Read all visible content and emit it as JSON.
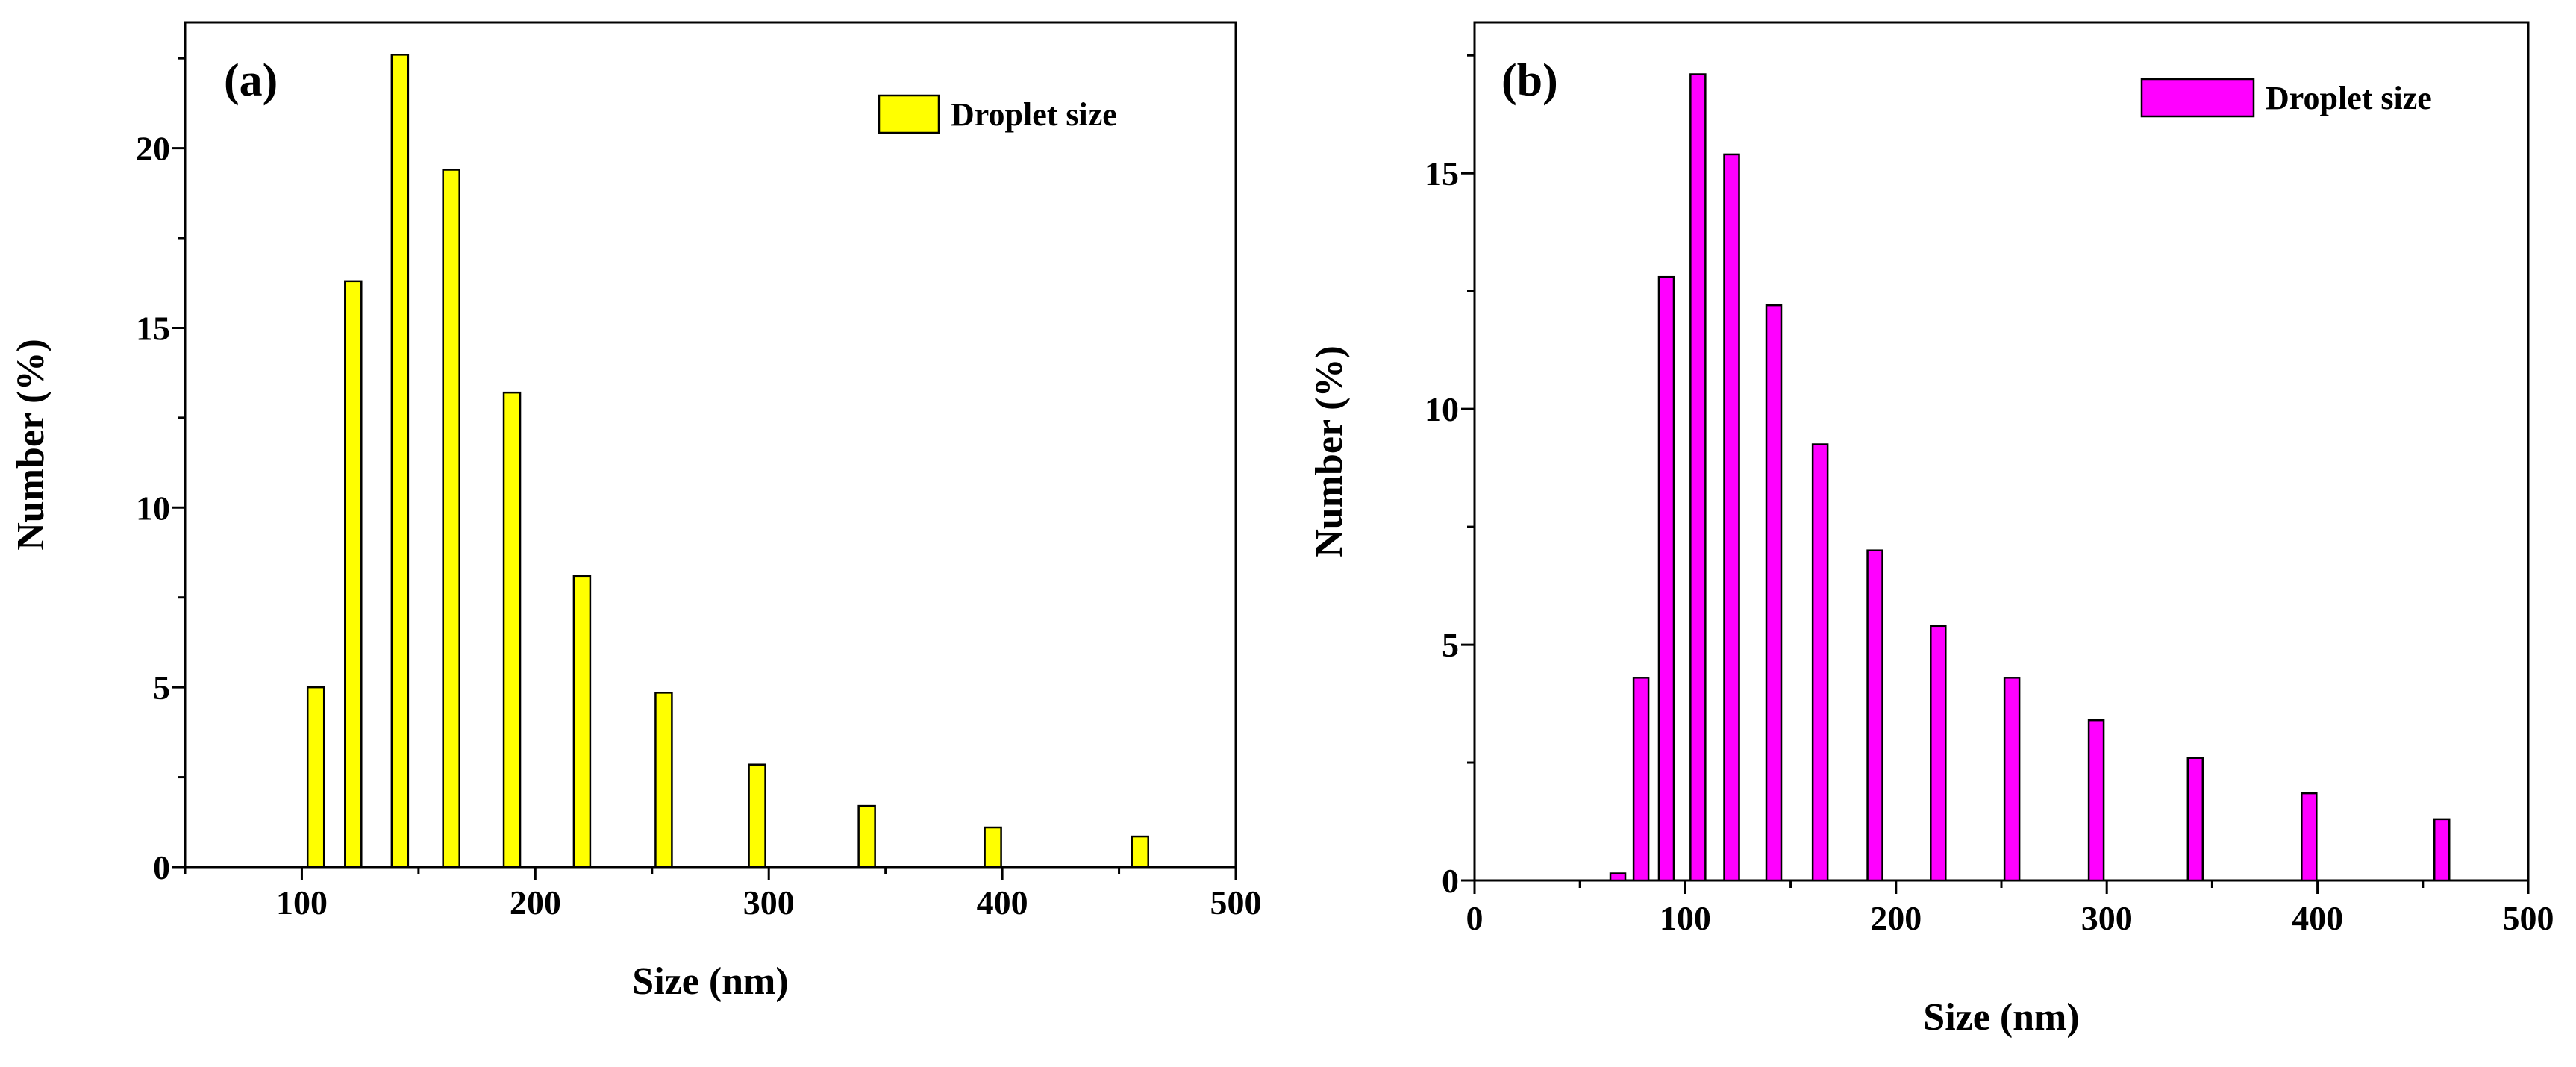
{
  "chart_data": [
    {
      "type": "bar",
      "panel_label": "(a)",
      "xlabel": "Size (nm)",
      "ylabel": "Number (%)",
      "legend": "Droplet size",
      "legend_position": "top-right",
      "color": "#ffff00",
      "xlim": [
        50,
        500
      ],
      "ylim": [
        0,
        23.5
      ],
      "xticks": [
        100,
        200,
        300,
        400,
        500
      ],
      "yticks": [
        0,
        5,
        10,
        15,
        20
      ],
      "x": [
        106,
        122,
        142,
        164,
        190,
        220,
        255,
        295,
        342,
        396,
        459
      ],
      "values": [
        5.0,
        16.3,
        22.6,
        19.4,
        13.2,
        8.1,
        4.85,
        2.85,
        1.7,
        1.1,
        0.85
      ]
    },
    {
      "type": "bar",
      "panel_label": "(b)",
      "xlabel": "Size (nm)",
      "ylabel": "Number (%)",
      "legend": "Droplet size",
      "legend_position": "top-right",
      "color": "#ff00ff",
      "xlim": [
        0,
        500
      ],
      "ylim": [
        0,
        18.2
      ],
      "xticks": [
        0,
        100,
        200,
        300,
        400,
        500
      ],
      "yticks": [
        0,
        5,
        10,
        15
      ],
      "x": [
        68,
        79,
        91,
        106,
        122,
        142,
        164,
        190,
        220,
        255,
        295,
        342,
        396,
        459
      ],
      "values": [
        0.15,
        4.3,
        12.8,
        17.1,
        15.4,
        12.2,
        9.25,
        7.0,
        5.4,
        4.3,
        3.4,
        2.6,
        1.85,
        1.3
      ]
    }
  ]
}
